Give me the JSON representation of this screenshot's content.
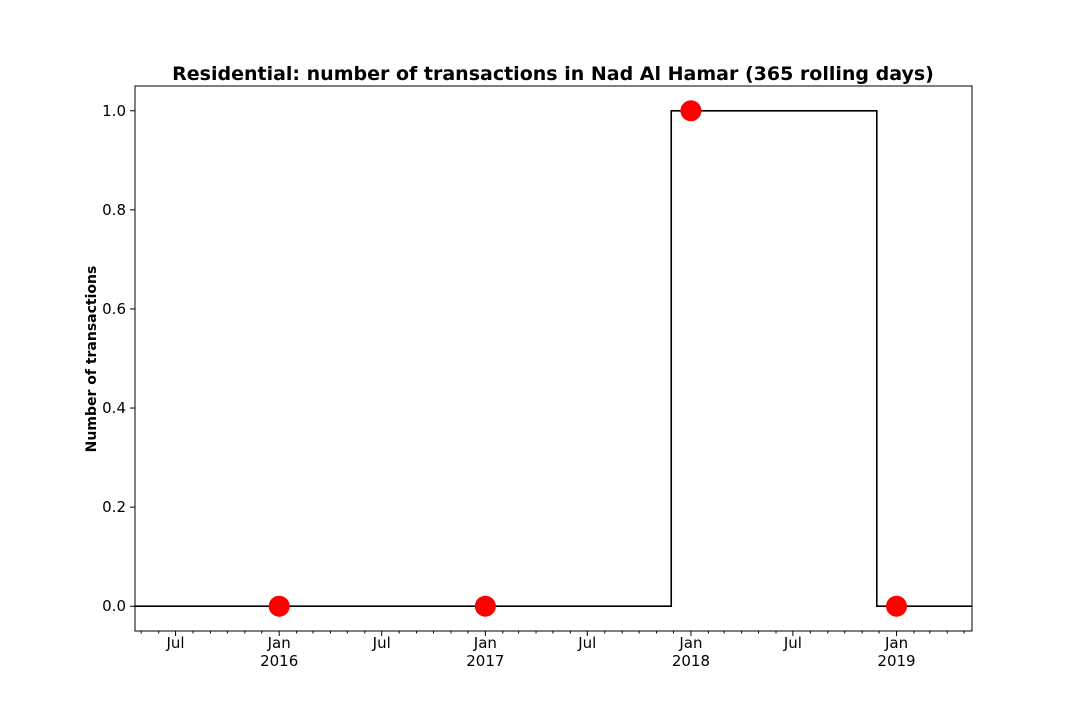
{
  "chart_data": {
    "type": "line",
    "title": "Residential: number of transactions in Nad Al Hamar (365 rolling days)",
    "xlabel": "",
    "ylabel": "Number of transactions",
    "xlim": [
      "2015-04-20",
      "2019-05-15"
    ],
    "ylim": [
      -0.05,
      1.05
    ],
    "grid": false,
    "legend": "none",
    "x_major_ticks": [
      {
        "date": "2015-07-01",
        "label": "Jul",
        "sublabel": ""
      },
      {
        "date": "2016-01-01",
        "label": "Jan",
        "sublabel": "2016"
      },
      {
        "date": "2016-07-01",
        "label": "Jul",
        "sublabel": ""
      },
      {
        "date": "2017-01-01",
        "label": "Jan",
        "sublabel": "2017"
      },
      {
        "date": "2017-07-01",
        "label": "Jul",
        "sublabel": ""
      },
      {
        "date": "2018-01-01",
        "label": "Jan",
        "sublabel": "2018"
      },
      {
        "date": "2018-07-01",
        "label": "Jul",
        "sublabel": ""
      },
      {
        "date": "2019-01-01",
        "label": "Jan",
        "sublabel": "2019"
      }
    ],
    "x_minor_ticks": [
      "2015-05-01",
      "2015-06-01",
      "2015-08-01",
      "2015-09-01",
      "2015-10-01",
      "2015-11-01",
      "2015-12-01",
      "2016-02-01",
      "2016-03-01",
      "2016-04-01",
      "2016-05-01",
      "2016-06-01",
      "2016-08-01",
      "2016-09-01",
      "2016-10-01",
      "2016-11-01",
      "2016-12-01",
      "2017-02-01",
      "2017-03-01",
      "2017-04-01",
      "2017-05-01",
      "2017-06-01",
      "2017-08-01",
      "2017-09-01",
      "2017-10-01",
      "2017-11-01",
      "2017-12-01",
      "2018-02-01",
      "2018-03-01",
      "2018-04-01",
      "2018-05-01",
      "2018-06-01",
      "2018-08-01",
      "2018-09-01",
      "2018-10-01",
      "2018-11-01",
      "2018-12-01",
      "2019-02-01",
      "2019-03-01",
      "2019-04-01",
      "2019-05-01"
    ],
    "y_ticks": [
      0.0,
      0.2,
      0.4,
      0.6,
      0.8,
      1.0
    ],
    "y_tick_labels": [
      "0.0",
      "0.2",
      "0.4",
      "0.6",
      "0.8",
      "1.0"
    ],
    "series": [
      {
        "style": "step",
        "color": "#000000",
        "x": [
          "2015-04-20",
          "2017-11-27",
          "2017-11-27",
          "2018-11-27",
          "2018-11-27",
          "2019-05-15"
        ],
        "y": [
          0,
          0,
          1,
          1,
          0,
          0
        ]
      }
    ],
    "markers": {
      "color": "#ff0000",
      "x": [
        "2016-01-01",
        "2017-01-01",
        "2018-01-01",
        "2019-01-01"
      ],
      "y": [
        0,
        0,
        1,
        0
      ]
    }
  }
}
